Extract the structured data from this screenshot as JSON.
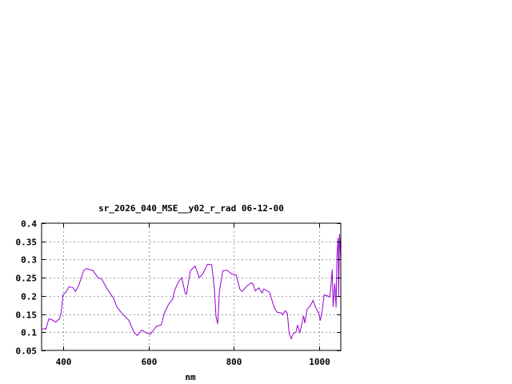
{
  "chart_data": {
    "type": "line",
    "title": "sr_2026_040_MSE__y02_r_rad 06-12-00",
    "xlabel": "nm",
    "ylabel": "",
    "xlim": [
      350,
      1050
    ],
    "ylim": [
      0.05,
      0.4
    ],
    "grid": true,
    "xticks": [
      400,
      600,
      800,
      1000
    ],
    "xtick_labels": [
      "400",
      "600",
      "800",
      "1000"
    ],
    "yticks": [
      0.05,
      0.1,
      0.15,
      0.2,
      0.25,
      0.3,
      0.35,
      0.4
    ],
    "ytick_labels": [
      "0.05",
      "0.1",
      "0.15",
      "0.2",
      "0.25",
      "0.3",
      "0.35",
      "0.4"
    ],
    "colors": {
      "series": "#9400d3",
      "grid": "#a0a0a0",
      "frame": "#000000"
    },
    "series": [
      {
        "x": [
          350,
          358,
          360,
          367,
          373,
          383,
          392,
          396,
          400,
          407,
          414,
          423,
          429,
          437,
          448,
          454,
          470,
          482,
          491,
          504,
          519,
          526,
          538,
          554,
          566,
          574,
          584,
          597,
          605,
          619,
          630,
          637,
          647,
          656,
          662,
          671,
          678,
          686,
          689,
          698,
          709,
          719,
          727,
          738,
          748,
          754,
          758,
          762,
          766,
          774,
          783,
          796,
          805,
          814,
          819,
          830,
          841,
          845,
          850,
          858,
          866,
          870,
          883,
          895,
          901,
          911,
          914,
          920,
          925,
          929,
          934,
          939,
          945,
          949,
          954,
          958,
          963,
          966,
          971,
          978,
          982,
          985,
          990,
          994,
          999,
          1002,
          1007,
          1011,
          1019,
          1024,
          1027,
          1030,
          1032,
          1036,
          1039,
          1041,
          1044,
          1045,
          1047,
          1050
        ],
        "y": [
          0.108,
          0.11,
          0.108,
          0.137,
          0.135,
          0.128,
          0.137,
          0.155,
          0.203,
          0.21,
          0.225,
          0.223,
          0.212,
          0.229,
          0.269,
          0.275,
          0.27,
          0.25,
          0.246,
          0.218,
          0.192,
          0.17,
          0.152,
          0.133,
          0.1,
          0.091,
          0.106,
          0.097,
          0.095,
          0.117,
          0.12,
          0.152,
          0.177,
          0.19,
          0.218,
          0.24,
          0.25,
          0.207,
          0.205,
          0.269,
          0.282,
          0.25,
          0.26,
          0.287,
          0.286,
          0.221,
          0.144,
          0.123,
          0.214,
          0.269,
          0.271,
          0.26,
          0.258,
          0.218,
          0.212,
          0.227,
          0.236,
          0.232,
          0.214,
          0.222,
          0.208,
          0.219,
          0.21,
          0.166,
          0.155,
          0.153,
          0.148,
          0.159,
          0.152,
          0.097,
          0.082,
          0.097,
          0.1,
          0.12,
          0.098,
          0.118,
          0.145,
          0.125,
          0.163,
          0.172,
          0.18,
          0.188,
          0.172,
          0.162,
          0.15,
          0.132,
          0.163,
          0.203,
          0.2,
          0.197,
          0.229,
          0.273,
          0.17,
          0.234,
          0.168,
          0.313,
          0.36,
          0.2,
          0.37,
          0.3
        ]
      }
    ]
  }
}
